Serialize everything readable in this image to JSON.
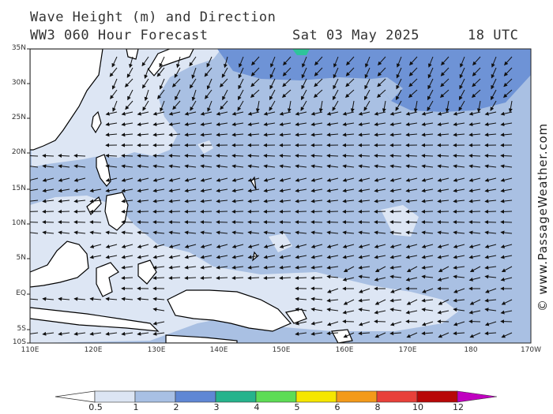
{
  "title": {
    "line1": "Wave Height (m) and Direction",
    "line2": "WW3 060 Hour Forecast",
    "date": "Sat 03 May 2025",
    "time": "18 UTC"
  },
  "watermark": "© www.PassageWeather.com",
  "map": {
    "lat_labels": [
      "35N",
      "30N",
      "25N",
      "20N",
      "15N",
      "10N",
      "5N",
      "EQ",
      "5S",
      "10S"
    ],
    "lon_labels": [
      "110E",
      "120E",
      "130E",
      "140E",
      "150E",
      "160E",
      "170E",
      "180",
      "170W"
    ],
    "lat_range": [
      -10,
      35
    ],
    "lon_range": [
      110,
      190
    ],
    "dominant_wave_direction": "east to west (toward west-southwest)",
    "colors": {
      "land": "#ffffff",
      "coastline": "#000000",
      "wave_0_5_1": "#dde6f4",
      "wave_1_2": "#a9c0e3",
      "wave_2_3": "#6e93d6",
      "wave_3_4": "#2ec49a",
      "arrow": "#111111"
    }
  },
  "colorbar": {
    "labels": [
      "0.5",
      "1",
      "2",
      "3",
      "4",
      "5",
      "6",
      "8",
      "10",
      "12"
    ],
    "colors": [
      "#dce5f3",
      "#a8c0e4",
      "#5f87d4",
      "#26b38c",
      "#5ddc55",
      "#f6e600",
      "#f39a1a",
      "#e8413a",
      "#b80808",
      "#c000c0"
    ]
  }
}
